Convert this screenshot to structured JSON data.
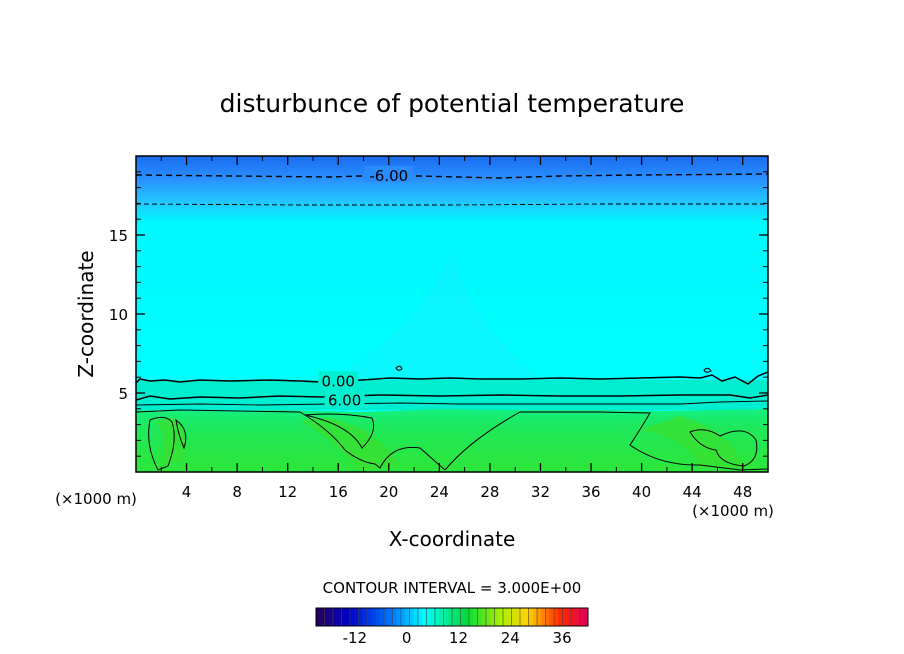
{
  "chart_data": {
    "type": "contour",
    "title": "disturbunce of potential temperature",
    "xlabel": "X-coordinate",
    "ylabel": "Z-coordinate",
    "x_unit": "(×1000 m)",
    "y_unit": "(×1000 m)",
    "xlim": [
      0,
      50
    ],
    "ylim": [
      0,
      20
    ],
    "x_ticks": [
      4,
      8,
      12,
      16,
      20,
      24,
      28,
      32,
      36,
      40,
      44,
      48
    ],
    "y_ticks": [
      5,
      10,
      15
    ],
    "contour_interval_text": "CONTOUR INTERVAL = 3.000E+00",
    "contour_interval": 3.0,
    "colorbar": {
      "range": [
        -21,
        42
      ],
      "ticks": [
        -12,
        0,
        12,
        24,
        36
      ],
      "colormap": "rainbow"
    },
    "contour_labels": [
      {
        "text": "-6.00",
        "value": -6,
        "x": 20,
        "z": 18.8
      },
      {
        "text": "0.00",
        "value": 0,
        "x": 16,
        "z": 5.8
      },
      {
        "text": "6.00",
        "value": 6,
        "x": 16.5,
        "z": 4.6
      }
    ],
    "layers": [
      {
        "z_from": 0,
        "z_to": 4.2,
        "value_range": [
          6,
          12
        ],
        "color": "#22e84a"
      },
      {
        "z_from": 4.2,
        "z_to": 6.0,
        "value_range": [
          0,
          6
        ],
        "color": "#00f0c8"
      },
      {
        "z_from": 6.0,
        "z_to": 16.0,
        "value_range": [
          -3,
          0
        ],
        "color": "#00ffff"
      },
      {
        "z_from": 16.0,
        "z_to": 20.0,
        "value_range": [
          -9,
          -3
        ],
        "color": "#2a8cff"
      }
    ]
  }
}
